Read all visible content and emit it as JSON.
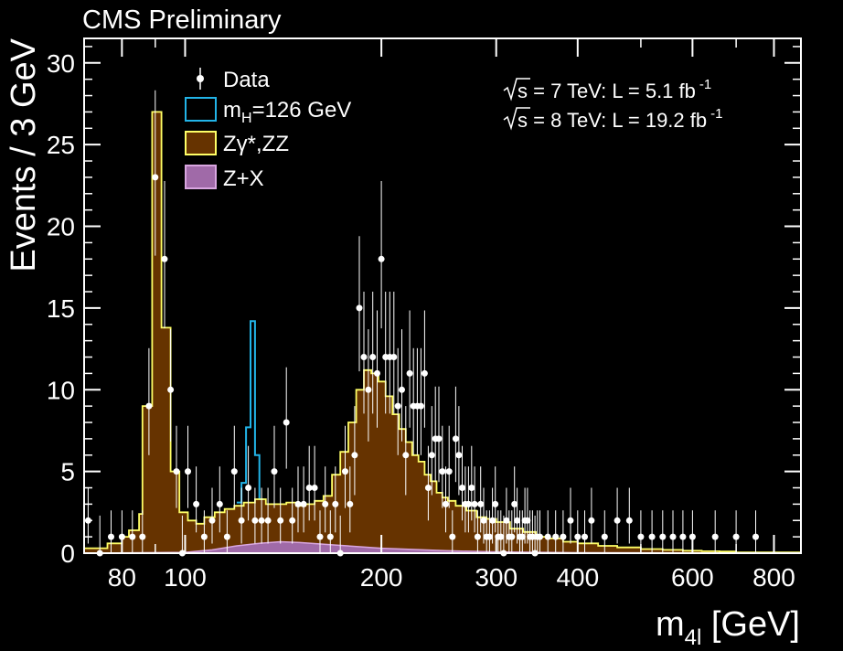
{
  "header": {
    "title": "CMS Preliminary"
  },
  "energy_labels": [
    {
      "sqrt": "s",
      "text": " = 7 TeV: L = 5.1 fb",
      "sup": "-1"
    },
    {
      "sqrt": "s",
      "text": " = 8 TeV: L = 19.2 fb",
      "sup": "-1"
    }
  ],
  "legend": {
    "data": "Data",
    "higgs_main": "m",
    "higgs_sub": "H",
    "higgs_rest": "=126 GeV",
    "zz": "Zγ*,ZZ",
    "zx": "Z+X"
  },
  "colors": {
    "background": "#000000",
    "zz_fill": "#663300",
    "zz_line": "#ffff66",
    "higgs_line": "#22b4e8",
    "zx_fill": "#a06aa8",
    "zx_line": "#d9a6e0",
    "data": "#ffffff"
  },
  "chart_data": {
    "type": "histogram",
    "title": "CMS Preliminary",
    "xlabel": "m4l [GeV]",
    "ylabel": "Events / 3 GeV",
    "x_scale": "log",
    "xlim": [
      70,
      880
    ],
    "ylim": [
      0,
      31.5
    ],
    "x_ticks": [
      80,
      100,
      200,
      300,
      400,
      600,
      800
    ],
    "y_ticks": [
      0,
      5,
      10,
      15,
      20,
      25,
      30
    ],
    "grid": false,
    "legend_position": "top-left",
    "zz_background": [
      [
        70,
        0.3
      ],
      [
        76,
        0.6
      ],
      [
        80,
        1.0
      ],
      [
        82,
        1.4
      ],
      [
        85,
        2.4
      ],
      [
        86,
        9.0
      ],
      [
        89,
        27.0
      ],
      [
        92,
        13.8
      ],
      [
        95,
        5.0
      ],
      [
        98,
        2.5
      ],
      [
        101,
        2.0
      ],
      [
        104,
        1.8
      ],
      [
        107,
        2.2
      ],
      [
        111,
        2.5
      ],
      [
        115,
        2.7
      ],
      [
        119,
        2.9
      ],
      [
        123,
        3.1
      ],
      [
        128,
        3.3
      ],
      [
        133,
        3.0
      ],
      [
        138,
        3.0
      ],
      [
        143,
        3.1
      ],
      [
        148,
        2.9
      ],
      [
        153,
        3.0
      ],
      [
        158,
        3.2
      ],
      [
        163,
        3.5
      ],
      [
        168,
        4.8
      ],
      [
        173,
        6.2
      ],
      [
        178,
        8.0
      ],
      [
        183,
        10.0
      ],
      [
        188,
        11.2
      ],
      [
        193,
        11.0
      ],
      [
        198,
        10.5
      ],
      [
        203,
        9.6
      ],
      [
        208,
        8.5
      ],
      [
        213,
        7.6
      ],
      [
        218,
        6.8
      ],
      [
        223,
        6.0
      ],
      [
        228,
        5.6
      ],
      [
        233,
        4.8
      ],
      [
        238,
        4.4
      ],
      [
        243,
        3.7
      ],
      [
        248,
        3.4
      ],
      [
        253,
        3.2
      ],
      [
        260,
        2.9
      ],
      [
        270,
        2.6
      ],
      [
        280,
        2.2
      ],
      [
        290,
        2.1
      ],
      [
        300,
        1.9
      ],
      [
        315,
        1.5
      ],
      [
        330,
        1.3
      ],
      [
        345,
        1.0
      ],
      [
        360,
        0.9
      ],
      [
        380,
        0.7
      ],
      [
        400,
        0.6
      ],
      [
        430,
        0.45
      ],
      [
        460,
        0.35
      ],
      [
        500,
        0.25
      ],
      [
        540,
        0.2
      ],
      [
        580,
        0.15
      ],
      [
        620,
        0.12
      ],
      [
        660,
        0.1
      ],
      [
        700,
        0.05
      ],
      [
        880,
        0.05
      ]
    ],
    "higgs_signal": [
      [
        120,
        3.1
      ],
      [
        122,
        4.3
      ],
      [
        124,
        7.7
      ],
      [
        126,
        14.2
      ],
      [
        128,
        6.0
      ],
      [
        130,
        3.3
      ]
    ],
    "z_plus_x": [
      [
        70,
        0.0
      ],
      [
        100,
        0.05
      ],
      [
        110,
        0.2
      ],
      [
        120,
        0.45
      ],
      [
        130,
        0.6
      ],
      [
        140,
        0.7
      ],
      [
        150,
        0.65
      ],
      [
        170,
        0.5
      ],
      [
        200,
        0.3
      ],
      [
        250,
        0.15
      ],
      [
        300,
        0.08
      ],
      [
        400,
        0.03
      ],
      [
        880,
        0.0
      ]
    ],
    "data": [
      [
        71,
        2
      ],
      [
        74,
        0
      ],
      [
        77,
        1
      ],
      [
        80,
        1
      ],
      [
        83,
        1
      ],
      [
        86,
        1
      ],
      [
        88,
        9
      ],
      [
        90,
        23
      ],
      [
        93,
        18
      ],
      [
        95,
        10
      ],
      [
        97,
        5
      ],
      [
        99,
        0
      ],
      [
        101,
        5
      ],
      [
        104,
        3
      ],
      [
        107,
        1
      ],
      [
        110,
        2
      ],
      [
        113,
        3
      ],
      [
        116,
        1
      ],
      [
        119,
        5
      ],
      [
        122,
        2
      ],
      [
        125,
        4
      ],
      [
        128,
        2
      ],
      [
        131,
        2
      ],
      [
        134,
        2
      ],
      [
        137,
        5
      ],
      [
        140,
        2
      ],
      [
        143,
        8
      ],
      [
        146,
        2
      ],
      [
        149,
        3
      ],
      [
        152,
        3
      ],
      [
        155,
        4
      ],
      [
        158,
        4
      ],
      [
        161,
        1
      ],
      [
        164,
        3
      ],
      [
        167,
        1
      ],
      [
        170,
        3
      ],
      [
        173,
        0
      ],
      [
        176,
        5
      ],
      [
        179,
        3
      ],
      [
        182,
        6
      ],
      [
        185,
        15
      ],
      [
        188,
        12
      ],
      [
        191,
        10
      ],
      [
        194,
        12
      ],
      [
        197,
        11
      ],
      [
        200,
        18
      ],
      [
        203,
        12
      ],
      [
        206,
        12
      ],
      [
        209,
        12
      ],
      [
        212,
        9
      ],
      [
        215,
        10
      ],
      [
        218,
        6
      ],
      [
        221,
        11
      ],
      [
        224,
        9
      ],
      [
        227,
        9
      ],
      [
        230,
        9
      ],
      [
        233,
        11
      ],
      [
        236,
        4
      ],
      [
        239,
        6
      ],
      [
        242,
        7
      ],
      [
        245,
        7
      ],
      [
        248,
        5
      ],
      [
        251,
        3
      ],
      [
        254,
        5
      ],
      [
        257,
        1
      ],
      [
        260,
        7
      ],
      [
        263,
        6
      ],
      [
        266,
        4
      ],
      [
        269,
        3
      ],
      [
        272,
        3
      ],
      [
        275,
        4
      ],
      [
        278,
        3
      ],
      [
        281,
        1
      ],
      [
        284,
        3
      ],
      [
        287,
        2
      ],
      [
        290,
        1
      ],
      [
        293,
        1
      ],
      [
        296,
        2
      ],
      [
        299,
        3
      ],
      [
        302,
        1
      ],
      [
        305,
        1
      ],
      [
        308,
        0
      ],
      [
        311,
        2
      ],
      [
        314,
        1
      ],
      [
        317,
        1
      ],
      [
        320,
        3
      ],
      [
        323,
        2
      ],
      [
        326,
        1
      ],
      [
        329,
        1
      ],
      [
        332,
        2
      ],
      [
        335,
        2
      ],
      [
        338,
        1
      ],
      [
        341,
        1
      ],
      [
        344,
        0
      ],
      [
        347,
        1
      ],
      [
        350,
        1
      ],
      [
        360,
        1
      ],
      [
        370,
        1
      ],
      [
        380,
        1
      ],
      [
        390,
        2
      ],
      [
        400,
        1
      ],
      [
        410,
        1
      ],
      [
        420,
        2
      ],
      [
        440,
        1
      ],
      [
        460,
        2
      ],
      [
        480,
        2
      ],
      [
        500,
        1
      ],
      [
        520,
        1
      ],
      [
        540,
        1
      ],
      [
        560,
        1
      ],
      [
        580,
        1
      ],
      [
        600,
        1
      ],
      [
        650,
        1
      ],
      [
        700,
        1
      ],
      [
        750,
        1
      ]
    ]
  }
}
